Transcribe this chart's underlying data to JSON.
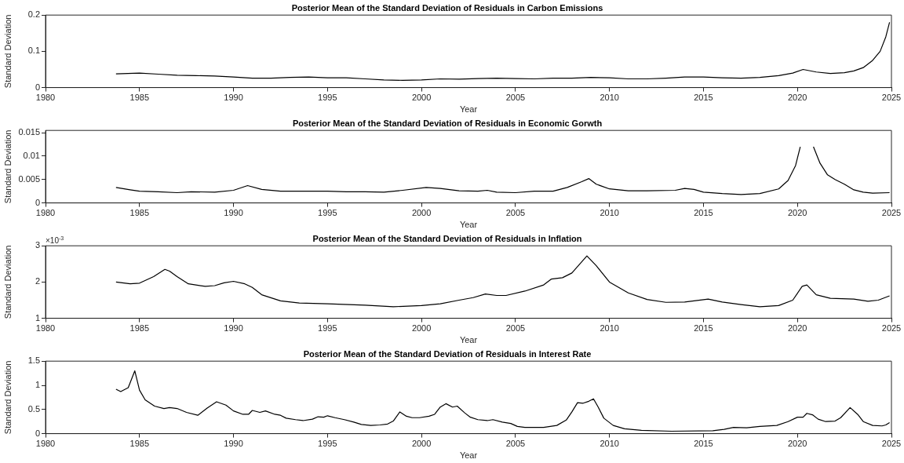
{
  "chart_data": [
    {
      "type": "line",
      "title": "Posterior Mean of the Standard Deviation of Residuals in Carbon Emissions",
      "xlabel": "Year",
      "ylabel": "Standard Deviation",
      "color": "#000000",
      "xlim": [
        1980,
        2025
      ],
      "xticks": [
        1980,
        1985,
        1990,
        1995,
        2000,
        2005,
        2010,
        2015,
        2020,
        2025
      ],
      "ylim": [
        0,
        0.2
      ],
      "yticks": [
        0,
        0.1,
        0.2
      ],
      "x": [
        1983.75,
        1985,
        1986,
        1987,
        1988,
        1989,
        1990,
        1991,
        1992,
        1993,
        1994,
        1995,
        1996,
        1997,
        1998,
        1999,
        2000,
        2001,
        2002,
        2003,
        2004,
        2005,
        2006,
        2007,
        2008,
        2009,
        2010,
        2011,
        2012,
        2013,
        2014,
        2015,
        2016,
        2017,
        2018,
        2019,
        2019.75,
        2020.3,
        2021,
        2021.75,
        2022.5,
        2023,
        2023.5,
        2024,
        2024.4,
        2024.7,
        2024.9
      ],
      "values": [
        0.038,
        0.04,
        0.037,
        0.034,
        0.033,
        0.032,
        0.029,
        0.026,
        0.026,
        0.028,
        0.029,
        0.027,
        0.027,
        0.024,
        0.021,
        0.02,
        0.021,
        0.024,
        0.023,
        0.025,
        0.026,
        0.025,
        0.024,
        0.026,
        0.026,
        0.028,
        0.027,
        0.024,
        0.024,
        0.026,
        0.029,
        0.029,
        0.027,
        0.026,
        0.028,
        0.033,
        0.04,
        0.05,
        0.043,
        0.039,
        0.041,
        0.046,
        0.055,
        0.075,
        0.1,
        0.14,
        0.18
      ]
    },
    {
      "type": "line",
      "title": "Posterior Mean of the Standard Deviation of Residuals in Economic Gorwth",
      "xlabel": "Year",
      "ylabel": "Standard Deviation",
      "color": "#000000",
      "xlim": [
        1980,
        2025
      ],
      "xticks": [
        1980,
        1985,
        1990,
        1995,
        2000,
        2005,
        2010,
        2015,
        2020,
        2025
      ],
      "ylim": [
        0,
        0.0155
      ],
      "yticks": [
        0,
        0.005,
        0.01,
        0.015
      ],
      "x": [
        1983.75,
        1984.5,
        1985,
        1986,
        1987,
        1987.75,
        1989,
        1990,
        1990.75,
        1991.5,
        1992.5,
        1993.5,
        1995,
        1996,
        1997,
        1998,
        1999,
        2000.25,
        2001,
        2002,
        2003,
        2003.5,
        2004,
        2005,
        2006,
        2007,
        2007.75,
        2008.5,
        2008.9,
        2009.3,
        2010,
        2011,
        2012,
        2013.5,
        2014,
        2014.5,
        2015,
        2016,
        2017,
        2018,
        2019,
        2019.5,
        2019.9,
        2020.15,
        2020.35,
        2020.6,
        2020.85,
        2021.2,
        2021.6,
        2022,
        2022.5,
        2023,
        2023.5,
        2024,
        2024.9
      ],
      "values": [
        0.0033,
        0.0028,
        0.0025,
        0.0024,
        0.0022,
        0.0024,
        0.0023,
        0.0027,
        0.0037,
        0.0029,
        0.0025,
        0.0025,
        0.0025,
        0.0024,
        0.0024,
        0.0023,
        0.0027,
        0.0033,
        0.0031,
        0.0026,
        0.0025,
        0.0027,
        0.0023,
        0.0022,
        0.0025,
        0.0025,
        0.0033,
        0.0045,
        0.0052,
        0.004,
        0.003,
        0.0026,
        0.0026,
        0.0027,
        0.0031,
        0.0029,
        0.0023,
        0.002,
        0.0018,
        0.002,
        0.003,
        0.0048,
        0.008,
        0.012,
        null,
        null,
        0.012,
        0.0085,
        0.006,
        0.005,
        0.004,
        0.0028,
        0.0023,
        0.0021,
        0.0022
      ]
    },
    {
      "type": "line",
      "title": "Posterior Mean of the Standard Deviation of Residuals in Inflation",
      "xlabel": "Year",
      "ylabel": "Standard Deviation",
      "annotations": [
        "×10$^{-3}$"
      ],
      "color": "#000000",
      "xlim": [
        1980,
        2025
      ],
      "xticks": [
        1980,
        1985,
        1990,
        1995,
        2000,
        2005,
        2010,
        2015,
        2020,
        2025
      ],
      "ylim": [
        1,
        3
      ],
      "yticks": [
        1,
        2,
        3
      ],
      "x": [
        1983.75,
        1984.5,
        1985,
        1985.75,
        1986.35,
        1986.6,
        1987,
        1987.6,
        1988.5,
        1989,
        1989.5,
        1990,
        1990.6,
        1991,
        1991.5,
        1992.5,
        1993.5,
        1995,
        1997,
        1998.5,
        2000,
        2001,
        2002,
        2002.75,
        2003.4,
        2004,
        2004.5,
        2005.5,
        2006.5,
        2006.9,
        2007.5,
        2008,
        2008.8,
        2009.3,
        2010,
        2011,
        2012,
        2013,
        2014,
        2015.25,
        2016,
        2017,
        2018,
        2019,
        2019.75,
        2020.25,
        2020.5,
        2021,
        2021.75,
        2023,
        2023.75,
        2024.3,
        2024.9
      ],
      "values": [
        2.0,
        1.95,
        1.97,
        2.15,
        2.35,
        2.3,
        2.15,
        1.95,
        1.88,
        1.9,
        1.98,
        2.02,
        1.95,
        1.85,
        1.65,
        1.48,
        1.42,
        1.4,
        1.36,
        1.32,
        1.35,
        1.4,
        1.5,
        1.57,
        1.67,
        1.63,
        1.63,
        1.75,
        1.92,
        2.08,
        2.12,
        2.25,
        2.72,
        2.45,
        2.0,
        1.7,
        1.52,
        1.44,
        1.45,
        1.53,
        1.45,
        1.38,
        1.32,
        1.35,
        1.5,
        1.88,
        1.92,
        1.65,
        1.55,
        1.53,
        1.47,
        1.5,
        1.62
      ]
    },
    {
      "type": "line",
      "title": "Posterior Mean of the Standard Deviation of Residuals in Interest Rate",
      "xlabel": "Year",
      "ylabel": "Standard Deviation",
      "color": "#000000",
      "xlim": [
        1980,
        2025
      ],
      "xticks": [
        1980,
        1985,
        1990,
        1995,
        2000,
        2005,
        2010,
        2015,
        2020,
        2025
      ],
      "ylim": [
        0,
        1.5
      ],
      "yticks": [
        0,
        0.5,
        1,
        1.5
      ],
      "x": [
        1983.75,
        1984,
        1984.4,
        1984.75,
        1985,
        1985.3,
        1985.8,
        1986.3,
        1986.6,
        1987,
        1987.5,
        1988.1,
        1988.6,
        1989.1,
        1989.6,
        1990,
        1990.5,
        1990.8,
        1991,
        1991.4,
        1991.7,
        1992.2,
        1992.5,
        1992.8,
        1993.3,
        1993.7,
        1994.2,
        1994.5,
        1994.8,
        1995,
        1995.4,
        1995.9,
        1996.4,
        1996.8,
        1997.3,
        1997.8,
        1998.2,
        1998.5,
        1998.85,
        1999.2,
        1999.5,
        1999.9,
        2000.4,
        2000.7,
        2001,
        2001.3,
        2001.65,
        2001.9,
        2002.3,
        2002.6,
        2003,
        2003.5,
        2003.8,
        2004.3,
        2004.75,
        2005.1,
        2005.5,
        2006.5,
        2007.2,
        2007.7,
        2008,
        2008.3,
        2008.6,
        2008.9,
        2009.15,
        2009.4,
        2009.7,
        2010.2,
        2010.8,
        2011.7,
        2013.3,
        2015.5,
        2016.1,
        2016.6,
        2017.3,
        2018,
        2018.9,
        2019.5,
        2020,
        2020.3,
        2020.5,
        2020.8,
        2021.1,
        2021.5,
        2022,
        2022.3,
        2022.8,
        2023.2,
        2023.5,
        2024,
        2024.5,
        2024.7,
        2024.9
      ],
      "values": [
        0.92,
        0.87,
        0.95,
        1.3,
        0.9,
        0.7,
        0.57,
        0.52,
        0.54,
        0.52,
        0.44,
        0.38,
        0.53,
        0.66,
        0.59,
        0.47,
        0.4,
        0.4,
        0.48,
        0.44,
        0.47,
        0.4,
        0.38,
        0.32,
        0.29,
        0.27,
        0.3,
        0.35,
        0.34,
        0.37,
        0.33,
        0.29,
        0.24,
        0.19,
        0.17,
        0.18,
        0.2,
        0.26,
        0.45,
        0.36,
        0.33,
        0.33,
        0.36,
        0.4,
        0.55,
        0.62,
        0.55,
        0.57,
        0.43,
        0.34,
        0.29,
        0.27,
        0.29,
        0.24,
        0.21,
        0.15,
        0.13,
        0.13,
        0.17,
        0.28,
        0.45,
        0.64,
        0.63,
        0.67,
        0.72,
        0.55,
        0.32,
        0.17,
        0.1,
        0.07,
        0.05,
        0.06,
        0.09,
        0.13,
        0.12,
        0.15,
        0.17,
        0.25,
        0.34,
        0.34,
        0.42,
        0.39,
        0.3,
        0.25,
        0.26,
        0.33,
        0.54,
        0.4,
        0.25,
        0.17,
        0.16,
        0.18,
        0.23
      ]
    }
  ]
}
